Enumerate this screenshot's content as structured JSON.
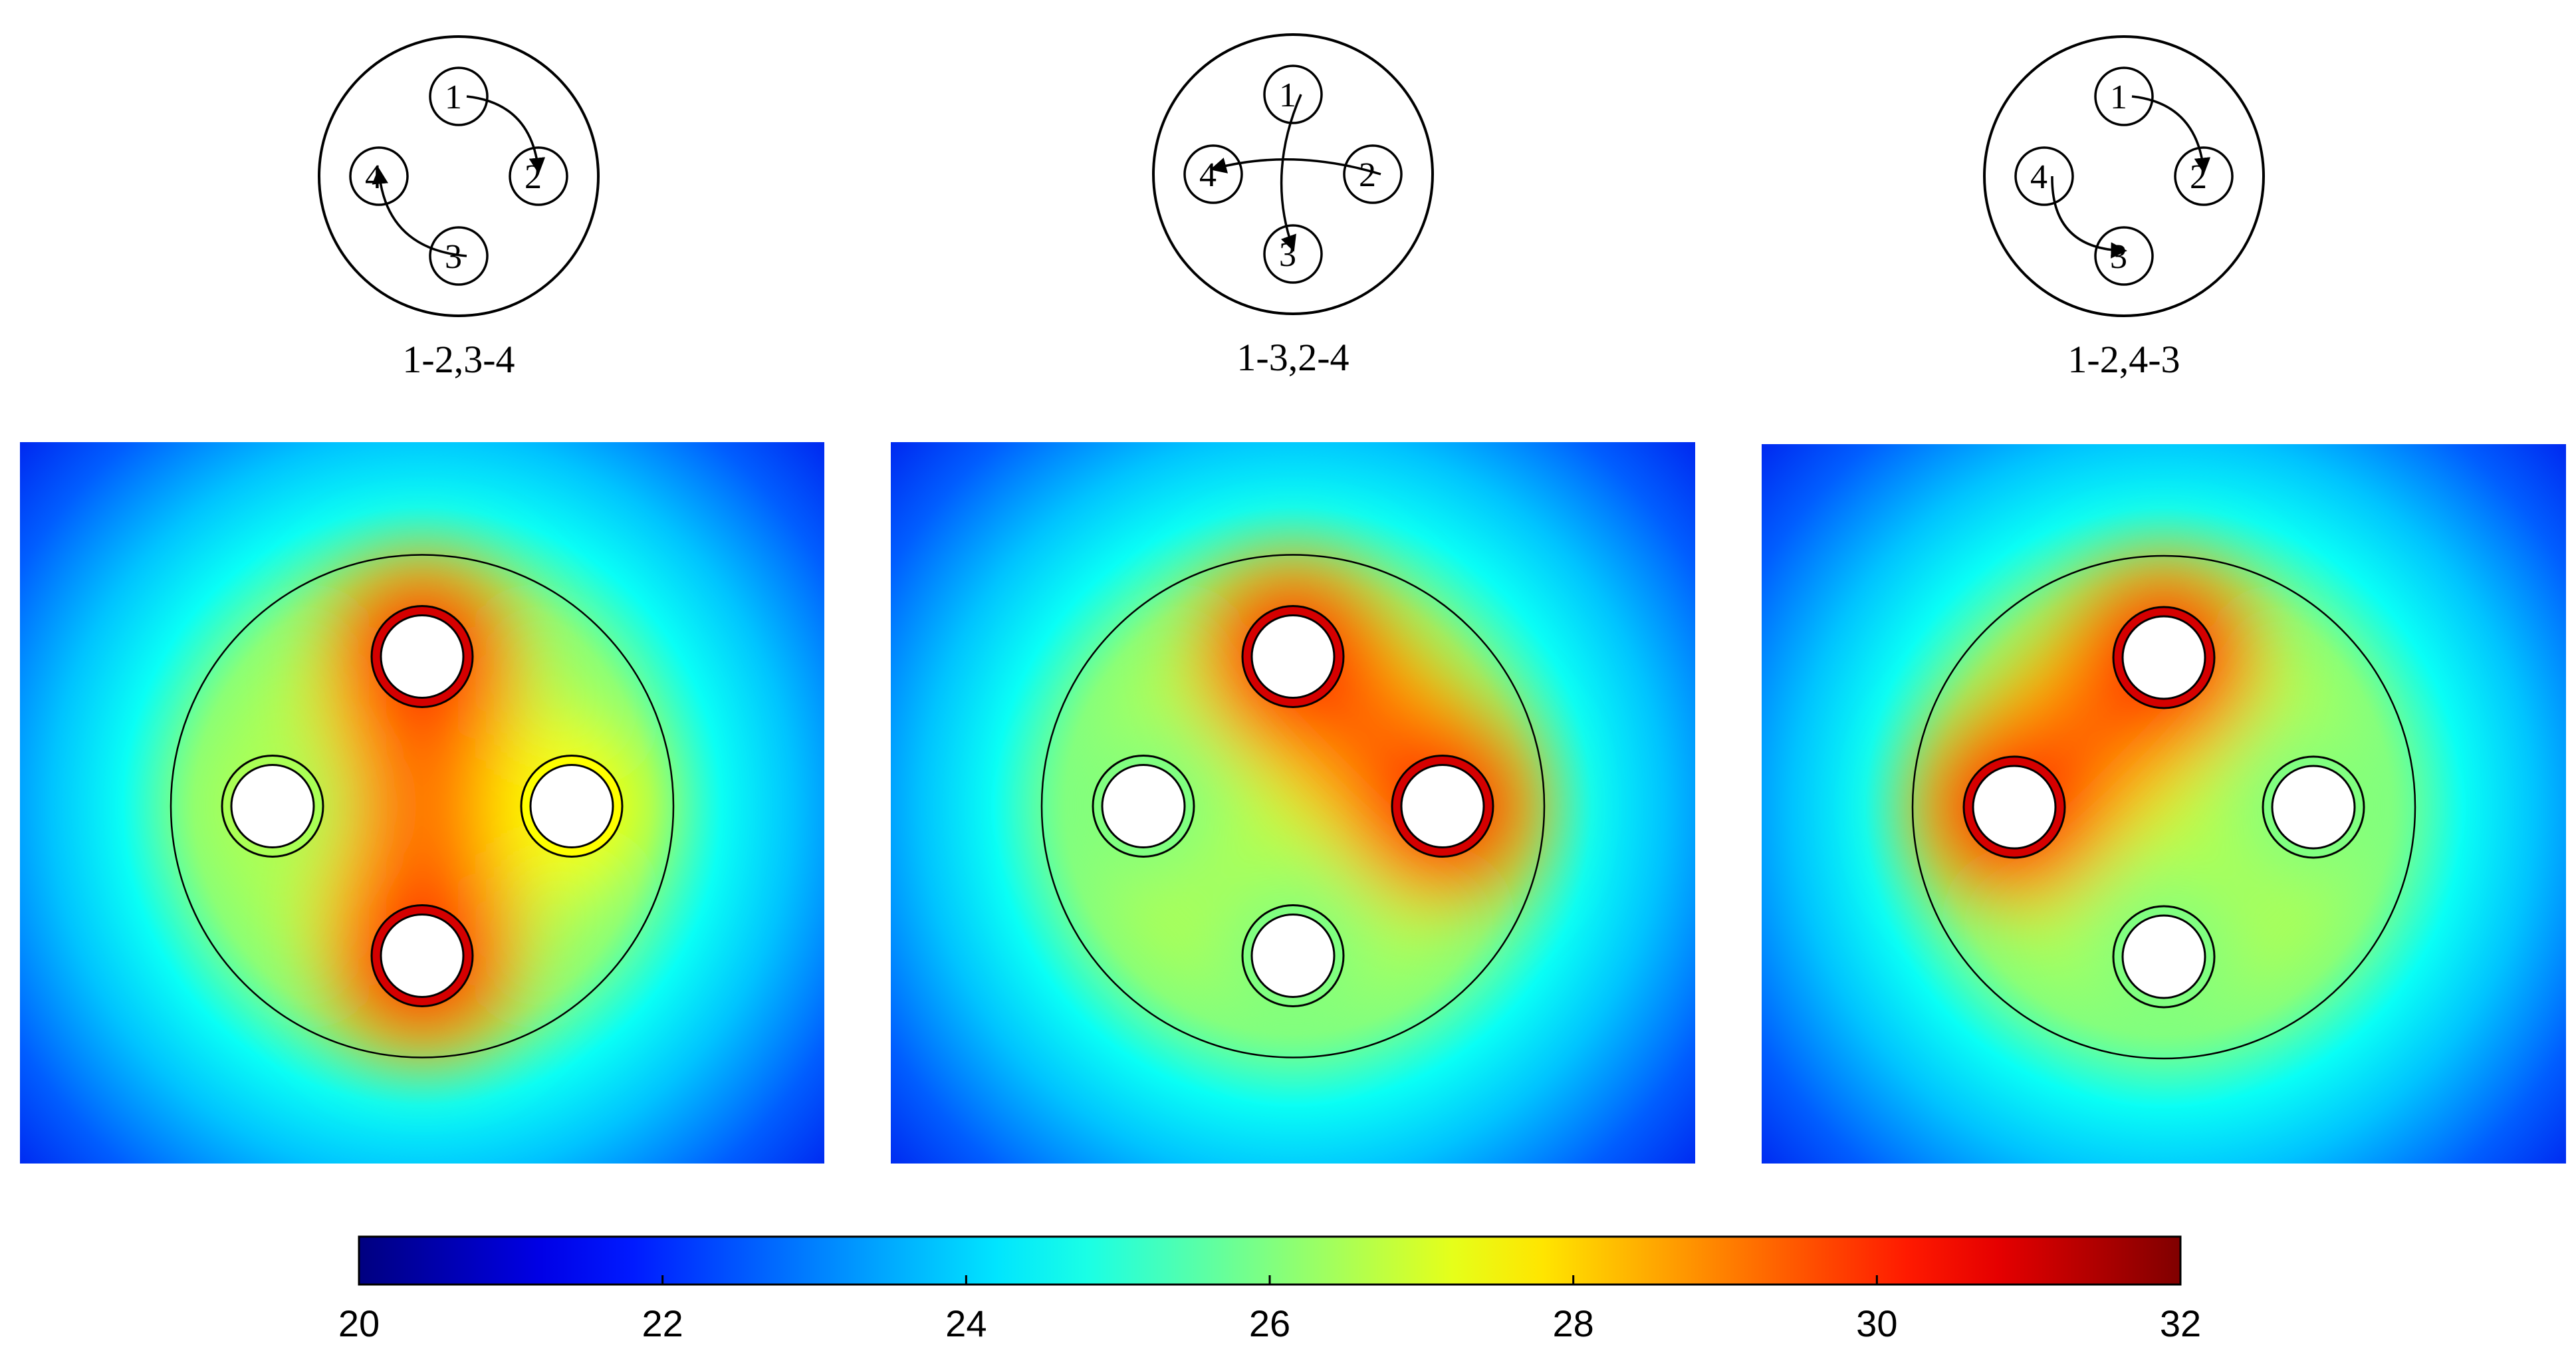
{
  "diagrams": [
    {
      "caption": "1-2,3-4",
      "nodes": [
        "1",
        "2",
        "3",
        "4"
      ],
      "arrows": [
        {
          "from": "1",
          "to": "2"
        },
        {
          "from": "3",
          "to": "4"
        }
      ],
      "heat": {
        "1": 31,
        "2": 27.5,
        "3": 31,
        "4": 26.5
      }
    },
    {
      "caption": "1-3,2-4",
      "nodes": [
        "1",
        "2",
        "3",
        "4"
      ],
      "arrows": [
        {
          "from": "1",
          "to": "3"
        },
        {
          "from": "2",
          "to": "4"
        }
      ],
      "heat": {
        "1": 31,
        "2": 31,
        "3": 26,
        "4": 26
      }
    },
    {
      "caption": "1-2,4-3",
      "nodes": [
        "1",
        "2",
        "3",
        "4"
      ],
      "arrows": [
        {
          "from": "1",
          "to": "2"
        },
        {
          "from": "4",
          "to": "3"
        }
      ],
      "heat": {
        "1": 31,
        "2": 26,
        "3": 26,
        "4": 31
      }
    }
  ],
  "colorbar": {
    "min": 20,
    "max": 32,
    "ticks": [
      "20",
      "22",
      "24",
      "26",
      "28",
      "30",
      "32"
    ],
    "colormap": "jet"
  },
  "colors": {
    "cable_outline": "#000000",
    "conductor_fill": "#ffffff",
    "background": "#ffffff"
  }
}
